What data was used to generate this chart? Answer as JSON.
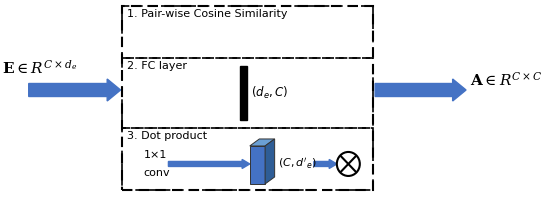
{
  "bg_color": "#ffffff",
  "arrow_color": "#4472c4",
  "section1_label": "1. Pair-wise Cosine Similarity",
  "section2_label": "2. FC layer",
  "section3_label": "3. Dot product",
  "section3_conv_line1": "1×1",
  "section3_conv_line2": "conv",
  "fc_sublabel": "$(d_e, C)$",
  "tensor_label": "$(C, d'_e)$",
  "left_label": "$\\mathbf{E}\\in R^{C\\times d_e}$",
  "right_label": "$\\mathbf{A}\\in R^{C\\times C}$",
  "blue_mid": "#4472c4",
  "blue_light": "#6a9fd4",
  "blue_dark": "#2e5d96",
  "figsize": [
    5.54,
    1.98
  ],
  "dpi": 100
}
